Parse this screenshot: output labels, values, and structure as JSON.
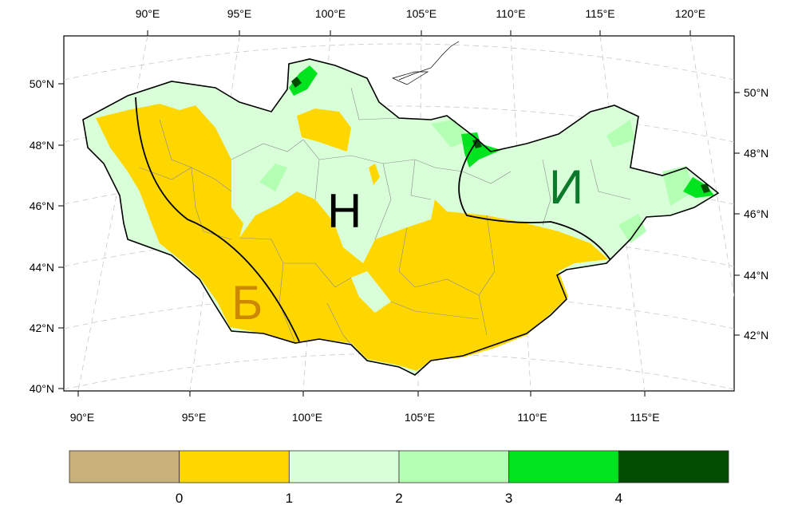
{
  "map": {
    "top_lon_labels": [
      "90°E",
      "95°E",
      "100°E",
      "105°E",
      "110°E",
      "115°E",
      "120°E"
    ],
    "bottom_lon_labels": [
      "90°E",
      "95°E",
      "100°E",
      "105°E",
      "110°E",
      "115°E"
    ],
    "left_lat_labels": [
      "50°N",
      "48°N",
      "46°N",
      "44°N",
      "42°N",
      "40°N"
    ],
    "right_lat_labels": [
      "50°N",
      "48°N",
      "46°N",
      "44°N",
      "42°N"
    ],
    "regions": [
      {
        "label": "Б",
        "color": "#cc8800"
      },
      {
        "label": "Н",
        "color": "#000000"
      },
      {
        "label": "И",
        "color": "#0a7a2a"
      }
    ],
    "legend": {
      "colors": [
        "#c8b07a",
        "#ffd700",
        "#d9ffd9",
        "#b3ffb3",
        "#00e31f",
        "#004d00"
      ],
      "labels": [
        "0",
        "1",
        "2",
        "3",
        "4"
      ]
    }
  }
}
